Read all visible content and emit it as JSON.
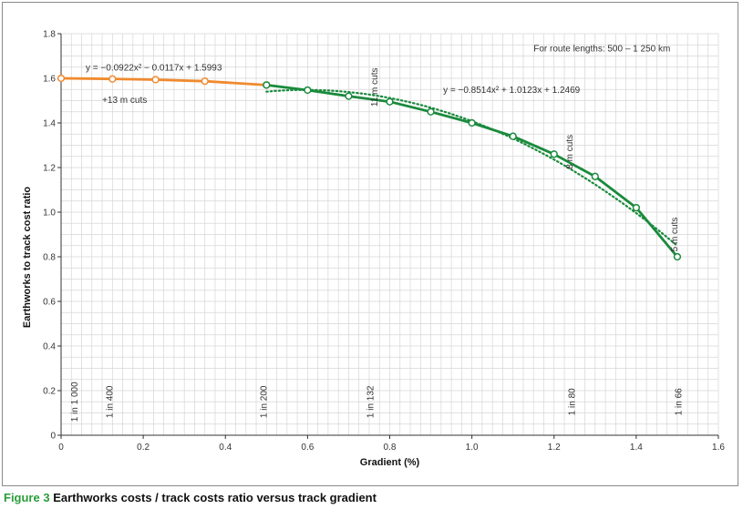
{
  "chart_data": {
    "type": "line",
    "xlabel": "Gradient (%)",
    "ylabel": "Earthworks to track cost ratio",
    "xlim": [
      0,
      1.6
    ],
    "ylim": [
      0,
      1.8
    ],
    "x_ticks": [
      "0",
      "0.2",
      "0.4",
      "0.6",
      "0.8",
      "1.0",
      "1.2",
      "1.4",
      "1.6"
    ],
    "y_ticks": [
      "0",
      "0.2",
      "0.4",
      "0.6",
      "0.8",
      "1.0",
      "1.2",
      "1.4",
      "1.6",
      "1.8"
    ],
    "grid": true,
    "series": [
      {
        "color": "#f08a2e",
        "x": [
          0,
          0.125,
          0.23,
          0.35,
          0.5
        ],
        "y": [
          1.6,
          1.597,
          1.594,
          1.587,
          1.57
        ]
      },
      {
        "color": "#1a8a3c",
        "x": [
          0.5,
          0.6,
          0.7,
          0.8,
          0.9,
          1.0,
          1.1,
          1.2,
          1.3,
          1.4,
          1.5
        ],
        "y": [
          1.57,
          1.547,
          1.52,
          1.495,
          1.45,
          1.4,
          1.34,
          1.26,
          1.16,
          1.02,
          0.8
        ]
      }
    ],
    "trendlines": [
      {
        "color": "#1a8a3c",
        "style": "dotted",
        "xrange": [
          0.5,
          1.5
        ]
      }
    ],
    "equations": [
      {
        "text": "y = −0.0922x² − 0.0117x + 1.5993",
        "x": 0.06,
        "y": 1.635
      },
      {
        "text": "y = −0.8514x² + 1.0123x + 1.2469",
        "x": 0.93,
        "y": 1.535
      }
    ],
    "annotations": [
      {
        "text": "For route lengths: 500 – 1 250 km",
        "x": 1.15,
        "y": 1.72,
        "rotated": false
      },
      {
        "text": "+13 m cuts",
        "x": 0.1,
        "y": 1.49,
        "rotated": false
      },
      {
        "text": "11 m cuts",
        "x": 0.77,
        "y": 1.56,
        "rotated": true
      },
      {
        "text": "8 m cuts",
        "x": 1.245,
        "y": 1.27,
        "rotated": true
      },
      {
        "text": "5 m cuts",
        "x": 1.5,
        "y": 0.9,
        "rotated": true
      },
      {
        "text": "1 in 1 000",
        "x": 0.04,
        "y": 0.15,
        "rotated": true
      },
      {
        "text": "1 in 400",
        "x": 0.125,
        "y": 0.15,
        "rotated": true
      },
      {
        "text": "1 in 200",
        "x": 0.5,
        "y": 0.15,
        "rotated": true
      },
      {
        "text": "1 in 132",
        "x": 0.76,
        "y": 0.15,
        "rotated": true
      },
      {
        "text": "1 in 80",
        "x": 1.25,
        "y": 0.15,
        "rotated": true
      },
      {
        "text": "1 in 66",
        "x": 1.51,
        "y": 0.15,
        "rotated": true
      }
    ]
  },
  "caption": {
    "figure_label": "Figure 3",
    "text": " Earthworks costs / track costs ratio versus track gradient"
  }
}
